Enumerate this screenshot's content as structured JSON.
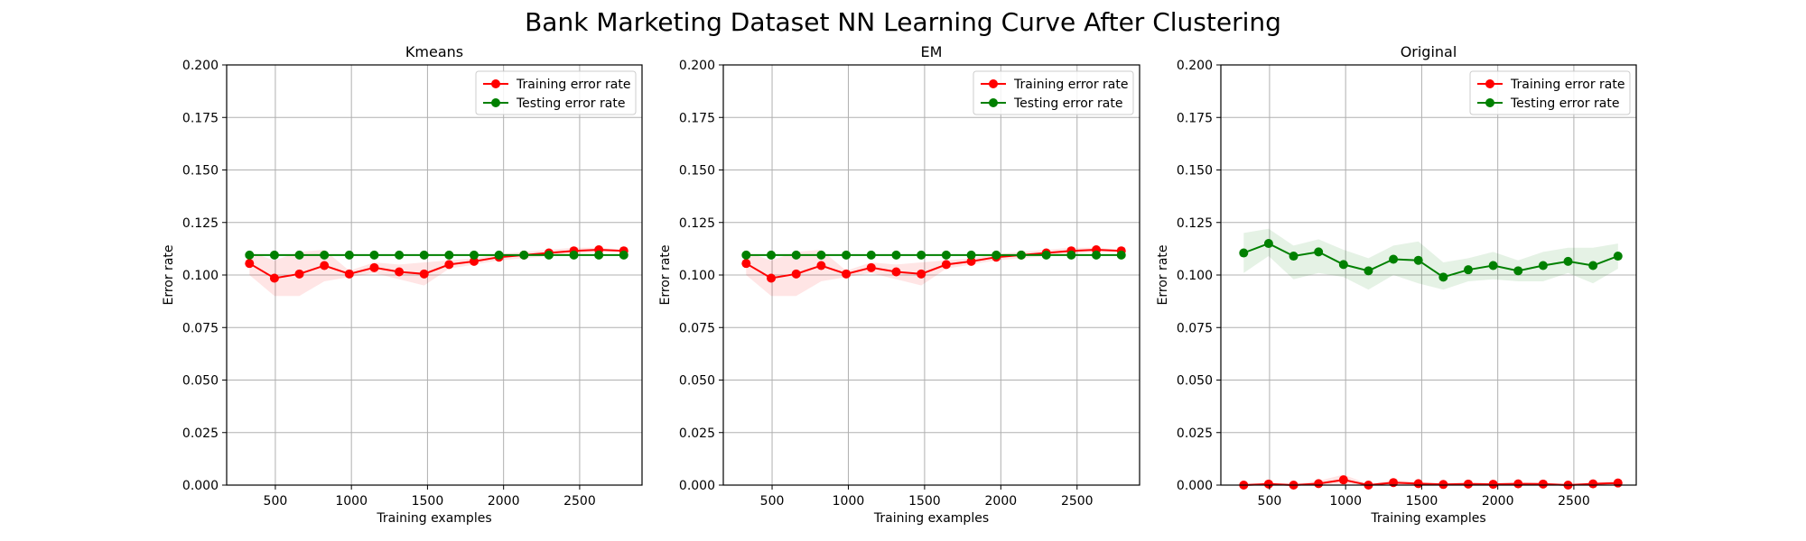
{
  "figure": {
    "title": "Bank Marketing Dataset NN Learning Curve After Clustering"
  },
  "chart_data": [
    {
      "type": "line",
      "title": "Kmeans",
      "xlabel": "Training examples",
      "ylabel": "Error rate",
      "xlim": [
        180,
        2910
      ],
      "ylim": [
        0,
        0.2
      ],
      "xticks": [
        500,
        1000,
        1500,
        2000,
        2500
      ],
      "yticks": [
        0,
        0.025,
        0.05,
        0.075,
        0.1,
        0.125,
        0.15,
        0.175,
        0.2
      ],
      "grid": true,
      "legend": "top-right",
      "x": [
        330,
        494,
        658,
        822,
        986,
        1150,
        1314,
        1478,
        1642,
        1806,
        1970,
        2134,
        2298,
        2462,
        2626,
        2790
      ],
      "series": [
        {
          "name": "Training error rate",
          "color": "#ff0000",
          "values": [
            0.1055,
            0.0985,
            0.1005,
            0.1045,
            0.1005,
            0.1035,
            0.1015,
            0.1005,
            0.105,
            0.1065,
            0.1085,
            0.1095,
            0.1105,
            0.1115,
            0.112,
            0.1115
          ],
          "band_lower": [
            0.1,
            0.09,
            0.09,
            0.097,
            0.099,
            0.101,
            0.098,
            0.095,
            0.103,
            0.105,
            0.107,
            0.108,
            0.109,
            0.11,
            0.111,
            0.111
          ],
          "band_upper": [
            0.111,
            0.107,
            0.111,
            0.112,
            0.102,
            0.106,
            0.105,
            0.106,
            0.107,
            0.108,
            0.11,
            0.111,
            0.112,
            0.113,
            0.113,
            0.112
          ]
        },
        {
          "name": "Testing error rate",
          "color": "#008000",
          "values": [
            0.1095,
            0.1095,
            0.1095,
            0.1095,
            0.1095,
            0.1095,
            0.1095,
            0.1095,
            0.1095,
            0.1095,
            0.1095,
            0.1095,
            0.1095,
            0.1095,
            0.1095,
            0.1095
          ]
        }
      ]
    },
    {
      "type": "line",
      "title": "EM",
      "xlabel": "Training examples",
      "ylabel": "Error rate",
      "xlim": [
        180,
        2910
      ],
      "ylim": [
        0,
        0.2
      ],
      "xticks": [
        500,
        1000,
        1500,
        2000,
        2500
      ],
      "yticks": [
        0,
        0.025,
        0.05,
        0.075,
        0.1,
        0.125,
        0.15,
        0.175,
        0.2
      ],
      "grid": true,
      "legend": "top-right",
      "x": [
        330,
        494,
        658,
        822,
        986,
        1150,
        1314,
        1478,
        1642,
        1806,
        1970,
        2134,
        2298,
        2462,
        2626,
        2790
      ],
      "series": [
        {
          "name": "Training error rate",
          "color": "#ff0000",
          "values": [
            0.1055,
            0.0985,
            0.1005,
            0.1045,
            0.1005,
            0.1035,
            0.1015,
            0.1005,
            0.105,
            0.1065,
            0.1085,
            0.1095,
            0.1105,
            0.1115,
            0.112,
            0.1115
          ],
          "band_lower": [
            0.1,
            0.09,
            0.09,
            0.097,
            0.099,
            0.101,
            0.098,
            0.095,
            0.103,
            0.105,
            0.107,
            0.108,
            0.109,
            0.11,
            0.111,
            0.111
          ],
          "band_upper": [
            0.111,
            0.107,
            0.111,
            0.112,
            0.102,
            0.106,
            0.105,
            0.106,
            0.107,
            0.108,
            0.11,
            0.111,
            0.112,
            0.113,
            0.113,
            0.112
          ]
        },
        {
          "name": "Testing error rate",
          "color": "#008000",
          "values": [
            0.1095,
            0.1095,
            0.1095,
            0.1095,
            0.1095,
            0.1095,
            0.1095,
            0.1095,
            0.1095,
            0.1095,
            0.1095,
            0.1095,
            0.1095,
            0.1095,
            0.1095,
            0.1095
          ]
        }
      ]
    },
    {
      "type": "line",
      "title": "Original",
      "xlabel": "Training examples",
      "ylabel": "Error rate",
      "xlim": [
        180,
        2910
      ],
      "ylim": [
        0,
        0.2
      ],
      "xticks": [
        500,
        1000,
        1500,
        2000,
        2500
      ],
      "yticks": [
        0,
        0.025,
        0.05,
        0.075,
        0.1,
        0.125,
        0.15,
        0.175,
        0.2
      ],
      "grid": true,
      "legend": "top-right",
      "x": [
        330,
        494,
        658,
        822,
        986,
        1150,
        1314,
        1478,
        1642,
        1806,
        1970,
        2134,
        2298,
        2462,
        2626,
        2790
      ],
      "series": [
        {
          "name": "Training error rate",
          "color": "#ff0000",
          "values": [
            0.0,
            0.0005,
            0.0,
            0.0007,
            0.0025,
            0.0,
            0.0012,
            0.0007,
            0.0003,
            0.0005,
            0.0004,
            0.0006,
            0.0005,
            0.0,
            0.0006,
            0.001
          ],
          "band_lower": [
            0.0,
            0.0,
            0.0,
            0.0,
            0.0,
            0.0,
            0.0,
            0.0,
            0.0,
            0.0,
            0.0,
            0.0,
            0.0,
            0.0,
            0.0,
            0.0
          ],
          "band_upper": [
            0.0005,
            0.0015,
            0.0005,
            0.002,
            0.005,
            0.0005,
            0.0025,
            0.0015,
            0.001,
            0.0015,
            0.001,
            0.0015,
            0.001,
            0.0005,
            0.0015,
            0.002
          ]
        },
        {
          "name": "Testing error rate",
          "color": "#008000",
          "values": [
            0.1105,
            0.115,
            0.109,
            0.111,
            0.105,
            0.102,
            0.1075,
            0.107,
            0.099,
            0.1025,
            0.1045,
            0.102,
            0.1045,
            0.1065,
            0.1045,
            0.109
          ],
          "band_lower": [
            0.101,
            0.109,
            0.098,
            0.101,
            0.099,
            0.093,
            0.1,
            0.096,
            0.093,
            0.097,
            0.098,
            0.097,
            0.097,
            0.101,
            0.096,
            0.103
          ],
          "band_upper": [
            0.12,
            0.122,
            0.114,
            0.117,
            0.112,
            0.108,
            0.114,
            0.116,
            0.106,
            0.108,
            0.111,
            0.107,
            0.111,
            0.113,
            0.113,
            0.115
          ]
        }
      ]
    }
  ]
}
